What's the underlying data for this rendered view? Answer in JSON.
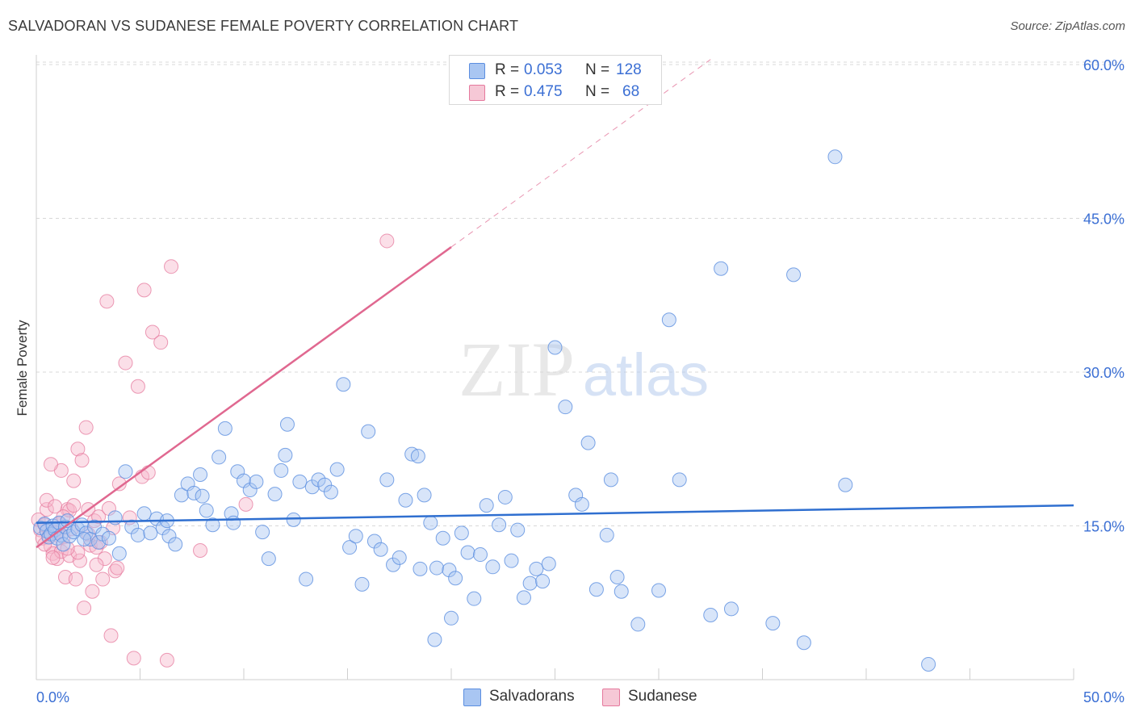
{
  "title": "SALVADORAN VS SUDANESE FEMALE POVERTY CORRELATION CHART",
  "source": "Source: ZipAtlas.com",
  "watermark": {
    "zip": "ZIP",
    "atlas": "atlas"
  },
  "legend_top": {
    "rows": [
      {
        "r_label": "R =",
        "r_value": "0.053",
        "n_label": "N =",
        "n_value": "128"
      },
      {
        "r_label": "R =",
        "r_value": "0.475",
        "n_label": "N =",
        "n_value": "68"
      }
    ]
  },
  "legend_bottom": [
    "Salvadorans",
    "Sudanese"
  ],
  "colors": {
    "blue_fill": "#a9c6f2",
    "blue_stroke": "#5b8ee0",
    "blue_line": "#2f6fd0",
    "pink_fill": "#f6b8cc",
    "pink_stroke": "#e5799d",
    "pink_line": "#e06890",
    "tick_label": "#3b6fd4",
    "grid": "#d8d8d8"
  },
  "chart_data": {
    "type": "scatter",
    "title": "SALVADORAN VS SUDANESE FEMALE POVERTY CORRELATION CHART",
    "xlabel": "",
    "ylabel": "Female Poverty",
    "xlim": [
      0,
      50
    ],
    "ylim": [
      0,
      60
    ],
    "x_tick_labels": [
      "0.0%",
      "50.0%"
    ],
    "y_tick_labels": [
      "15.0%",
      "30.0%",
      "45.0%",
      "60.0%"
    ],
    "y_ticks": [
      15,
      30,
      45,
      60
    ],
    "grid": true,
    "legend_position": "top-center",
    "series": [
      {
        "name": "Salvadorans",
        "r": 0.053,
        "n": 128,
        "trend": {
          "x": [
            0,
            50
          ],
          "y": [
            15.3,
            17.0
          ]
        },
        "points": [
          [
            0.2,
            14.8
          ],
          [
            0.4,
            15.2
          ],
          [
            0.5,
            14.5
          ],
          [
            0.6,
            13.9
          ],
          [
            0.7,
            14.2
          ],
          [
            0.8,
            15.0
          ],
          [
            0.9,
            14.6
          ],
          [
            1.0,
            13.8
          ],
          [
            1.1,
            15.3
          ],
          [
            1.2,
            14.1
          ],
          [
            1.3,
            13.2
          ],
          [
            1.4,
            14.9
          ],
          [
            1.5,
            15.5
          ],
          [
            1.6,
            14.0
          ],
          [
            1.8,
            14.4
          ],
          [
            2.0,
            14.7
          ],
          [
            2.2,
            15.1
          ],
          [
            2.4,
            14.3
          ],
          [
            2.6,
            13.7
          ],
          [
            2.8,
            14.9
          ],
          [
            3.0,
            13.4
          ],
          [
            3.2,
            14.2
          ],
          [
            3.5,
            13.8
          ],
          [
            3.8,
            15.8
          ],
          [
            4.0,
            12.3
          ],
          [
            4.3,
            20.3
          ],
          [
            4.6,
            14.9
          ],
          [
            4.9,
            14.1
          ],
          [
            5.2,
            16.2
          ],
          [
            5.5,
            14.3
          ],
          [
            5.8,
            15.7
          ],
          [
            6.1,
            14.8
          ],
          [
            6.4,
            14.0
          ],
          [
            6.7,
            13.2
          ],
          [
            7.0,
            18.0
          ],
          [
            7.3,
            19.1
          ],
          [
            7.6,
            18.2
          ],
          [
            7.9,
            20.0
          ],
          [
            8.2,
            16.5
          ],
          [
            8.5,
            15.1
          ],
          [
            8.8,
            21.7
          ],
          [
            9.1,
            24.5
          ],
          [
            9.4,
            16.2
          ],
          [
            9.7,
            20.3
          ],
          [
            10.0,
            19.4
          ],
          [
            10.3,
            18.5
          ],
          [
            10.6,
            19.3
          ],
          [
            10.9,
            14.4
          ],
          [
            11.2,
            11.8
          ],
          [
            11.5,
            18.1
          ],
          [
            11.8,
            20.4
          ],
          [
            12.1,
            24.9
          ],
          [
            12.4,
            15.6
          ],
          [
            12.7,
            19.3
          ],
          [
            13.0,
            9.8
          ],
          [
            13.3,
            18.8
          ],
          [
            13.6,
            19.5
          ],
          [
            13.9,
            19.0
          ],
          [
            14.2,
            18.3
          ],
          [
            14.5,
            20.5
          ],
          [
            14.8,
            28.8
          ],
          [
            15.1,
            12.9
          ],
          [
            15.4,
            14.0
          ],
          [
            15.7,
            9.3
          ],
          [
            16.0,
            24.2
          ],
          [
            16.3,
            13.5
          ],
          [
            16.6,
            12.7
          ],
          [
            16.9,
            19.5
          ],
          [
            17.2,
            11.2
          ],
          [
            17.5,
            11.9
          ],
          [
            17.8,
            17.5
          ],
          [
            18.1,
            22.0
          ],
          [
            18.4,
            21.8
          ],
          [
            18.7,
            18.0
          ],
          [
            19.0,
            15.3
          ],
          [
            19.3,
            10.9
          ],
          [
            19.6,
            13.8
          ],
          [
            19.9,
            10.7
          ],
          [
            20.2,
            9.9
          ],
          [
            20.5,
            14.3
          ],
          [
            20.8,
            12.4
          ],
          [
            21.1,
            7.9
          ],
          [
            21.4,
            12.2
          ],
          [
            21.7,
            17.0
          ],
          [
            22.0,
            11.0
          ],
          [
            22.3,
            15.1
          ],
          [
            22.6,
            17.8
          ],
          [
            22.9,
            11.6
          ],
          [
            23.2,
            14.6
          ],
          [
            23.5,
            8.0
          ],
          [
            23.8,
            9.4
          ],
          [
            24.1,
            10.8
          ],
          [
            24.4,
            9.6
          ],
          [
            24.7,
            11.3
          ],
          [
            25.0,
            32.4
          ],
          [
            25.5,
            26.6
          ],
          [
            26.0,
            18.0
          ],
          [
            26.3,
            17.1
          ],
          [
            26.6,
            23.1
          ],
          [
            27.0,
            8.8
          ],
          [
            27.5,
            14.1
          ],
          [
            27.7,
            19.5
          ],
          [
            28.0,
            10.0
          ],
          [
            28.2,
            8.6
          ],
          [
            29.0,
            5.4
          ],
          [
            30.0,
            8.7
          ],
          [
            30.5,
            35.1
          ],
          [
            31.0,
            19.5
          ],
          [
            32.5,
            6.3
          ],
          [
            33.0,
            40.1
          ],
          [
            33.5,
            6.9
          ],
          [
            35.5,
            5.5
          ],
          [
            36.5,
            39.5
          ],
          [
            37.0,
            3.6
          ],
          [
            38.5,
            51.0
          ],
          [
            39.0,
            19.0
          ],
          [
            43.0,
            1.5
          ],
          [
            19.2,
            3.9
          ],
          [
            20.0,
            6.0
          ],
          [
            6.3,
            15.5
          ],
          [
            8.0,
            17.9
          ],
          [
            2.3,
            13.7
          ],
          [
            9.5,
            15.3
          ],
          [
            18.5,
            10.8
          ],
          [
            12.0,
            21.9
          ]
        ]
      },
      {
        "name": "Sudanese",
        "r": 0.475,
        "n": 68,
        "trend_solid": {
          "x": [
            0,
            20
          ],
          "y": [
            12.9,
            42.2
          ]
        },
        "trend_dashed": {
          "x": [
            20,
            32.5
          ],
          "y": [
            42.2,
            60.5
          ]
        },
        "points": [
          [
            0.1,
            15.6
          ],
          [
            0.2,
            14.6
          ],
          [
            0.3,
            13.8
          ],
          [
            0.4,
            15.1
          ],
          [
            0.5,
            16.6
          ],
          [
            0.6,
            14.0
          ],
          [
            0.7,
            13.0
          ],
          [
            0.8,
            12.3
          ],
          [
            0.9,
            14.4
          ],
          [
            1.0,
            11.8
          ],
          [
            1.1,
            15.2
          ],
          [
            1.2,
            12.5
          ],
          [
            1.3,
            13.9
          ],
          [
            1.4,
            10.0
          ],
          [
            1.5,
            16.6
          ],
          [
            1.6,
            12.1
          ],
          [
            1.7,
            14.7
          ],
          [
            1.8,
            19.4
          ],
          [
            1.9,
            9.8
          ],
          [
            2.0,
            22.5
          ],
          [
            2.1,
            11.6
          ],
          [
            2.2,
            21.4
          ],
          [
            2.3,
            7.0
          ],
          [
            2.4,
            24.6
          ],
          [
            2.5,
            16.6
          ],
          [
            2.6,
            13.1
          ],
          [
            2.7,
            8.6
          ],
          [
            2.8,
            15.5
          ],
          [
            2.9,
            12.9
          ],
          [
            3.0,
            15.9
          ],
          [
            3.1,
            13.4
          ],
          [
            3.2,
            9.8
          ],
          [
            3.3,
            11.8
          ],
          [
            3.4,
            36.9
          ],
          [
            3.5,
            16.7
          ],
          [
            3.6,
            4.3
          ],
          [
            3.7,
            14.8
          ],
          [
            3.8,
            10.6
          ],
          [
            3.9,
            10.9
          ],
          [
            4.0,
            19.1
          ],
          [
            4.3,
            30.9
          ],
          [
            4.5,
            15.8
          ],
          [
            4.7,
            2.1
          ],
          [
            4.9,
            28.6
          ],
          [
            5.1,
            19.8
          ],
          [
            5.2,
            38.0
          ],
          [
            5.4,
            20.2
          ],
          [
            5.6,
            33.9
          ],
          [
            6.0,
            32.9
          ],
          [
            6.3,
            1.9
          ],
          [
            6.5,
            40.3
          ],
          [
            7.9,
            12.6
          ],
          [
            10.1,
            17.1
          ],
          [
            16.9,
            42.8
          ],
          [
            0.5,
            17.5
          ],
          [
            0.8,
            11.9
          ],
          [
            1.2,
            20.4
          ],
          [
            1.6,
            16.5
          ],
          [
            2.0,
            12.4
          ],
          [
            2.9,
            11.2
          ],
          [
            1.0,
            14.3
          ],
          [
            1.3,
            15.9
          ],
          [
            0.4,
            13.2
          ],
          [
            0.9,
            16.9
          ],
          [
            1.8,
            17.0
          ],
          [
            2.5,
            14.2
          ],
          [
            0.7,
            21.0
          ],
          [
            1.5,
            12.8
          ]
        ]
      }
    ]
  }
}
